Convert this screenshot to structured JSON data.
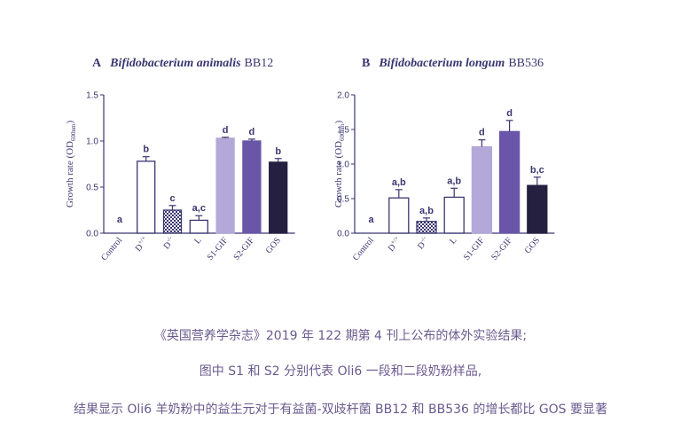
{
  "chart_data": [
    {
      "type": "bar",
      "panel": "A",
      "title_italic": "Bifidobacterium animalis",
      "title_strain": "BB12",
      "ylabel_main": "Growth rate (OD",
      "ylabel_sub": "600nm",
      "ylabel_end": ")",
      "ylim": [
        0,
        1.5
      ],
      "yticks": [
        "0.0",
        "0.5",
        "1.0",
        "1.5"
      ],
      "ytick_values": [
        0,
        0.5,
        1.0,
        1.5
      ],
      "categories": [
        "Control",
        "D+/+",
        "D-/-",
        "L",
        "S1-GIF",
        "S2-GIF",
        "GOS"
      ],
      "category_base": [
        "Control",
        "D",
        "D",
        "L",
        "S1-GIF",
        "S2-GIF",
        "GOS"
      ],
      "category_sup": [
        "",
        "+/+",
        "-/-",
        "",
        "",
        "",
        ""
      ],
      "values": [
        0.0,
        0.78,
        0.25,
        0.14,
        1.03,
        1.0,
        0.77
      ],
      "errors": [
        0.0,
        0.05,
        0.05,
        0.05,
        0.01,
        0.02,
        0.04
      ],
      "letters": [
        "a",
        "b",
        "c",
        "a,c",
        "d",
        "d",
        "b"
      ],
      "grid": false
    },
    {
      "type": "bar",
      "panel": "B",
      "title_italic": "Bifidobacterium longum",
      "title_strain": "BB536",
      "ylabel_main": "Growth rate (OD",
      "ylabel_sub": "600nm",
      "ylabel_end": ")",
      "ylim": [
        0,
        2.0
      ],
      "yticks": [
        "0.0",
        "0.5",
        "1.0",
        "1.5",
        "2.0"
      ],
      "ytick_values": [
        0,
        0.5,
        1.0,
        1.5,
        2.0
      ],
      "categories": [
        "Control",
        "D+/+",
        "D-/-",
        "L",
        "S1-GIF",
        "S2-GIF",
        "GOS"
      ],
      "category_base": [
        "Control",
        "D",
        "D",
        "L",
        "S1-GIF",
        "S2-GIF",
        "GOS"
      ],
      "category_sup": [
        "",
        "+/+",
        "-/-",
        "",
        "",
        "",
        ""
      ],
      "values": [
        0.0,
        0.51,
        0.17,
        0.52,
        1.25,
        1.47,
        0.69
      ],
      "errors": [
        0.0,
        0.12,
        0.05,
        0.13,
        0.1,
        0.16,
        0.12
      ],
      "letters": [
        "a",
        "a,b",
        "a,b",
        "a,b",
        "d",
        "d",
        "b,c"
      ],
      "grid": false
    }
  ],
  "bar_styles": [
    {
      "fill": "none",
      "stroke": "#3a3670"
    },
    {
      "fill": "#ffffff",
      "stroke": "#3a3670"
    },
    {
      "fill": "pattern",
      "stroke": "#3a3670"
    },
    {
      "fill": "#ffffff",
      "stroke": "#3a3670"
    },
    {
      "fill": "#b4a8d8",
      "stroke": "#b4a8d8"
    },
    {
      "fill": "#6a56a8",
      "stroke": "#6a56a8"
    },
    {
      "fill": "#25203f",
      "stroke": "#25203f"
    }
  ],
  "colors": {
    "axis": "#3a3670",
    "text": "#3a3670",
    "caption": "#6a5a8e"
  },
  "caption": {
    "line1": "《英国营养学杂志》2019 年 122 期第 4 刊上公布的体外实验结果;",
    "line2": "图中 S1 和 S2 分别代表 Oli6 一段和二段奶粉样品,",
    "line3": "结果显示 Oli6 羊奶粉中的益生元对于有益菌-双歧杆菌 BB12 和 BB536 的增长都比 GOS 要显著"
  }
}
